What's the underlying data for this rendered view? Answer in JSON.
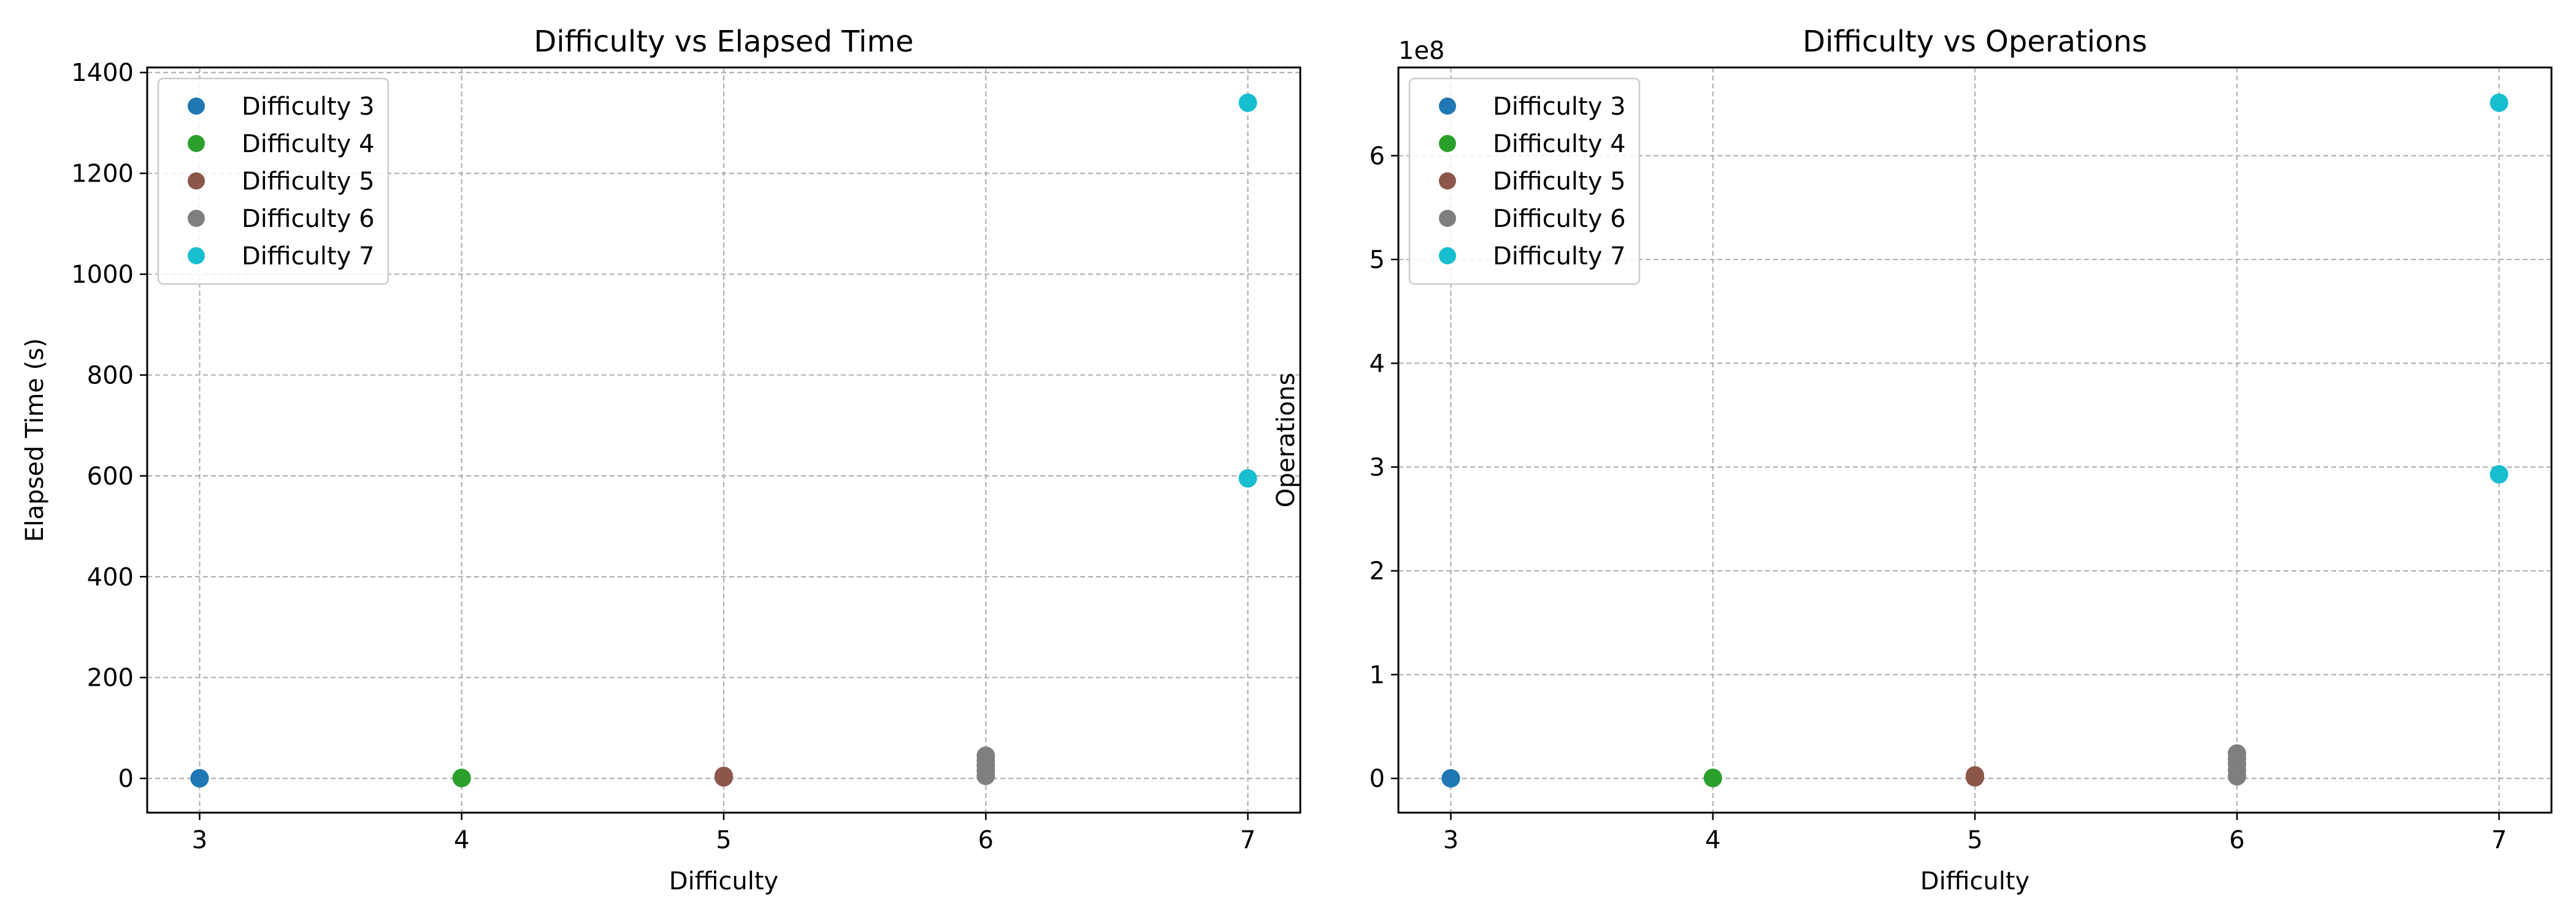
{
  "chart_data": [
    {
      "type": "scatter",
      "title": "Difficulty vs Elapsed Time",
      "xlabel": "Difficulty",
      "ylabel": "Elapsed Time (s)",
      "y_offset_label": "",
      "xlim": [
        2.8,
        7.2
      ],
      "ylim": [
        -68,
        1410
      ],
      "xticks": [
        3,
        4,
        5,
        6,
        7
      ],
      "yticks": [
        0,
        200,
        400,
        600,
        800,
        1000,
        1200,
        1400
      ],
      "grid": true,
      "legend_position": "upper left",
      "series": [
        {
          "name": "Difficulty 3",
          "color": "#1f77b4",
          "points": [
            {
              "x": 3,
              "y": 0.1
            },
            {
              "x": 3,
              "y": 0.3
            }
          ]
        },
        {
          "name": "Difficulty 4",
          "color": "#2ca02c",
          "points": [
            {
              "x": 4,
              "y": 0.5
            },
            {
              "x": 4,
              "y": 1
            }
          ]
        },
        {
          "name": "Difficulty 5",
          "color": "#8c564b",
          "points": [
            {
              "x": 5,
              "y": 2
            },
            {
              "x": 5,
              "y": 5
            }
          ]
        },
        {
          "name": "Difficulty 6",
          "color": "#7f7f7f",
          "points": [
            {
              "x": 6,
              "y": 5
            },
            {
              "x": 6,
              "y": 15
            },
            {
              "x": 6,
              "y": 25
            },
            {
              "x": 6,
              "y": 35
            },
            {
              "x": 6,
              "y": 45
            }
          ]
        },
        {
          "name": "Difficulty 7",
          "color": "#17becf",
          "points": [
            {
              "x": 7,
              "y": 595
            },
            {
              "x": 7,
              "y": 1340
            }
          ]
        }
      ]
    },
    {
      "type": "scatter",
      "title": "Difficulty vs Operations",
      "xlabel": "Difficulty",
      "ylabel": "Operations",
      "y_offset_label": "1e8",
      "xlim": [
        2.8,
        7.2
      ],
      "ylim": [
        -0.33,
        6.85
      ],
      "xticks": [
        3,
        4,
        5,
        6,
        7
      ],
      "yticks": [
        0,
        1,
        2,
        3,
        4,
        5,
        6
      ],
      "grid": true,
      "legend_position": "upper left",
      "series": [
        {
          "name": "Difficulty 3",
          "color": "#1f77b4",
          "points": [
            {
              "x": 3,
              "y": 0.0005
            },
            {
              "x": 3,
              "y": 0.001
            }
          ]
        },
        {
          "name": "Difficulty 4",
          "color": "#2ca02c",
          "points": [
            {
              "x": 4,
              "y": 0.003
            },
            {
              "x": 4,
              "y": 0.006
            }
          ]
        },
        {
          "name": "Difficulty 5",
          "color": "#8c564b",
          "points": [
            {
              "x": 5,
              "y": 0.01
            },
            {
              "x": 5,
              "y": 0.03
            }
          ]
        },
        {
          "name": "Difficulty 6",
          "color": "#7f7f7f",
          "points": [
            {
              "x": 6,
              "y": 0.02
            },
            {
              "x": 6,
              "y": 0.08
            },
            {
              "x": 6,
              "y": 0.14
            },
            {
              "x": 6,
              "y": 0.19
            },
            {
              "x": 6,
              "y": 0.24
            }
          ]
        },
        {
          "name": "Difficulty 7",
          "color": "#17becf",
          "points": [
            {
              "x": 7,
              "y": 2.93
            },
            {
              "x": 7,
              "y": 6.51
            }
          ]
        }
      ]
    }
  ]
}
